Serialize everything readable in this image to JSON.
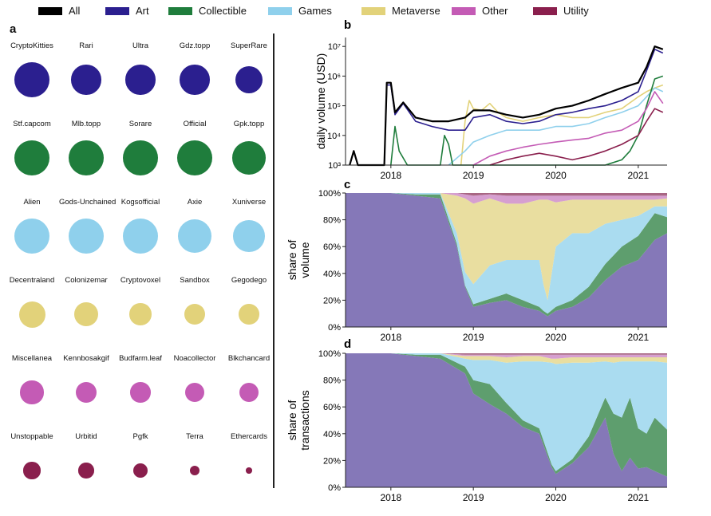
{
  "legend": [
    {
      "label": "All",
      "color": "#000000"
    },
    {
      "label": "Art",
      "color": "#2b1f8f"
    },
    {
      "label": "Collectible",
      "color": "#1f7d3c"
    },
    {
      "label": "Games",
      "color": "#8fd0ec"
    },
    {
      "label": "Metaverse",
      "color": "#e2d27a"
    },
    {
      "label": "Other",
      "color": "#c45bb5"
    },
    {
      "label": "Utility",
      "color": "#8a1f4d"
    }
  ],
  "panels": {
    "a": "a",
    "b": "b",
    "c": "c",
    "d": "d"
  },
  "panel_a": {
    "rows": [
      {
        "category": "Art",
        "color": "#2b1f8f",
        "items": [
          {
            "name": "CryptoKitties",
            "size": 1.0
          },
          {
            "name": "Rari",
            "size": 0.85
          },
          {
            "name": "Ultra",
            "size": 0.85
          },
          {
            "name": "Gdz.topp",
            "size": 0.85
          },
          {
            "name": "SuperRare",
            "size": 0.78
          }
        ]
      },
      {
        "category": "Collectible",
        "color": "#1f7d3c",
        "items": [
          {
            "name": "Stf.capcom",
            "size": 1.0
          },
          {
            "name": "Mlb.topp",
            "size": 1.0
          },
          {
            "name": "Sorare",
            "size": 1.0
          },
          {
            "name": "Official",
            "size": 1.0
          },
          {
            "name": "Gpk.topp",
            "size": 0.95
          }
        ]
      },
      {
        "category": "Games",
        "color": "#8fd0ec",
        "items": [
          {
            "name": "Alien",
            "size": 1.0
          },
          {
            "name": "Gods-Unchained",
            "size": 1.0
          },
          {
            "name": "Kogsofficial",
            "size": 1.0
          },
          {
            "name": "Axie",
            "size": 0.95
          },
          {
            "name": "Xuniverse",
            "size": 0.9
          }
        ]
      },
      {
        "category": "Metaverse",
        "color": "#e2d27a",
        "items": [
          {
            "name": "Decentraland",
            "size": 0.75
          },
          {
            "name": "Colonizemar",
            "size": 0.68
          },
          {
            "name": "Cryptovoxel",
            "size": 0.63
          },
          {
            "name": "Sandbox",
            "size": 0.6
          },
          {
            "name": "Gegodego",
            "size": 0.58
          }
        ]
      },
      {
        "category": "Other",
        "color": "#c45bb5",
        "items": [
          {
            "name": "Miscellanea",
            "size": 0.66
          },
          {
            "name": "Kennbosakgif",
            "size": 0.6
          },
          {
            "name": "Budfarm.leaf",
            "size": 0.58
          },
          {
            "name": "Noacollector",
            "size": 0.56
          },
          {
            "name": "Blkchancard",
            "size": 0.56
          }
        ]
      },
      {
        "category": "Utility",
        "color": "#8a1f4d",
        "items": [
          {
            "name": "Unstoppable",
            "size": 0.48
          },
          {
            "name": "Urbitid",
            "size": 0.44
          },
          {
            "name": "Pgfk",
            "size": 0.42
          },
          {
            "name": "Terra",
            "size": 0.28
          },
          {
            "name": "Ethercards",
            "size": 0.17
          }
        ]
      }
    ]
  },
  "chart_data": [
    {
      "panel": "b",
      "type": "line",
      "ylabel": "daily volume (USD)",
      "yscale": "log",
      "xlim": [
        2017.45,
        2021.35
      ],
      "ylim": [
        1000,
        20000000
      ],
      "xticks": [
        "2018",
        "2019",
        "2020",
        "2021"
      ],
      "yticks": [
        "10³",
        "10⁴",
        "10⁵",
        "10⁶",
        "10⁷"
      ],
      "series": [
        {
          "name": "Metaverse",
          "color": "#e2d27a",
          "x": [
            2018.85,
            2018.9,
            2018.95,
            2019.0,
            2019.1,
            2019.2,
            2019.3,
            2019.4,
            2019.6,
            2019.8,
            2020.0,
            2020.2,
            2020.4,
            2020.6,
            2020.8,
            2021.0,
            2021.1,
            2021.2,
            2021.3
          ],
          "y": [
            1000,
            30000,
            150000,
            80000,
            70000,
            120000,
            60000,
            40000,
            30000,
            40000,
            50000,
            40000,
            40000,
            60000,
            80000,
            200000,
            300000,
            400000,
            500000
          ]
        },
        {
          "name": "Games",
          "color": "#8fd0ec",
          "x": [
            2018.7,
            2018.9,
            2019.0,
            2019.2,
            2019.4,
            2019.6,
            2019.8,
            2020.0,
            2020.2,
            2020.4,
            2020.6,
            2020.8,
            2021.0,
            2021.1,
            2021.2,
            2021.3
          ],
          "y": [
            1000,
            3000,
            6000,
            10000,
            15000,
            15000,
            15000,
            20000,
            20000,
            25000,
            40000,
            60000,
            100000,
            200000,
            400000,
            300000
          ]
        },
        {
          "name": "Collectible",
          "color": "#1f7d3c",
          "x": [
            2018.0,
            2018.05,
            2018.1,
            2018.2,
            2018.25,
            2018.6,
            2018.65,
            2018.7,
            2018.75,
            2019.5,
            2020.0,
            2020.3,
            2020.6,
            2020.8,
            2020.9,
            2021.0,
            2021.1,
            2021.2,
            2021.3
          ],
          "y": [
            1000,
            20000,
            3000,
            1000,
            1000,
            1000,
            10000,
            5000,
            1000,
            1000,
            1000,
            1000,
            1000,
            1500,
            3000,
            10000,
            100000,
            800000,
            1000000
          ]
        },
        {
          "name": "Other",
          "color": "#c45bb5",
          "x": [
            2019.0,
            2019.2,
            2019.4,
            2019.6,
            2019.8,
            2020.0,
            2020.2,
            2020.4,
            2020.6,
            2020.8,
            2021.0,
            2021.1,
            2021.2,
            2021.3
          ],
          "y": [
            1000,
            2000,
            3000,
            4000,
            5000,
            6000,
            7000,
            8000,
            12000,
            15000,
            30000,
            80000,
            300000,
            120000
          ]
        },
        {
          "name": "Utility",
          "color": "#8a1f4d",
          "x": [
            2019.2,
            2019.4,
            2019.6,
            2019.8,
            2020.0,
            2020.2,
            2020.4,
            2020.6,
            2020.8,
            2021.0,
            2021.1,
            2021.2,
            2021.3
          ],
          "y": [
            1000,
            1500,
            2000,
            2500,
            2000,
            1500,
            2000,
            3000,
            5000,
            10000,
            30000,
            80000,
            60000
          ]
        },
        {
          "name": "Art",
          "color": "#2b1f8f",
          "x": [
            2017.5,
            2017.55,
            2017.6,
            2017.92,
            2017.95,
            2018.0,
            2018.05,
            2018.15,
            2018.3,
            2018.5,
            2018.7,
            2018.9,
            2019.0,
            2019.2,
            2019.4,
            2019.6,
            2019.8,
            2020.0,
            2020.2,
            2020.4,
            2020.6,
            2020.8,
            2021.0,
            2021.1,
            2021.2,
            2021.3
          ],
          "y": [
            1000,
            3000,
            1000,
            1000,
            500000,
            500000,
            50000,
            120000,
            30000,
            20000,
            15000,
            15000,
            40000,
            50000,
            30000,
            25000,
            30000,
            50000,
            60000,
            80000,
            100000,
            150000,
            300000,
            1500000,
            8000000,
            6000000
          ]
        },
        {
          "name": "All",
          "color": "#000000",
          "x": [
            2017.5,
            2017.55,
            2017.6,
            2017.92,
            2017.95,
            2018.0,
            2018.05,
            2018.15,
            2018.3,
            2018.5,
            2018.7,
            2018.9,
            2019.0,
            2019.2,
            2019.4,
            2019.6,
            2019.8,
            2020.0,
            2020.2,
            2020.4,
            2020.6,
            2020.8,
            2021.0,
            2021.1,
            2021.2,
            2021.3
          ],
          "y": [
            1000,
            3000,
            1000,
            1000,
            600000,
            600000,
            60000,
            130000,
            40000,
            30000,
            30000,
            40000,
            70000,
            70000,
            50000,
            40000,
            50000,
            80000,
            100000,
            150000,
            250000,
            400000,
            600000,
            2000000,
            10000000,
            8000000
          ]
        }
      ]
    },
    {
      "panel": "c",
      "type": "area",
      "stacked": true,
      "ylabel": "share of volume",
      "xlim": [
        2017.45,
        2021.35
      ],
      "ylim": [
        0,
        100
      ],
      "xticks": [
        "2018",
        "2019",
        "2020",
        "2021"
      ],
      "yticks": [
        "0%",
        "20%",
        "40%",
        "60%",
        "80%",
        "100%"
      ],
      "x": [
        2017.45,
        2018.0,
        2018.3,
        2018.6,
        2018.8,
        2018.9,
        2019.0,
        2019.2,
        2019.4,
        2019.6,
        2019.8,
        2019.85,
        2019.9,
        2020.0,
        2020.2,
        2020.4,
        2020.6,
        2020.8,
        2021.0,
        2021.2,
        2021.35
      ],
      "series": [
        {
          "name": "Art",
          "color": "#8578b8",
          "values": [
            100,
            100,
            98,
            96,
            60,
            30,
            15,
            18,
            20,
            15,
            12,
            10,
            8,
            12,
            15,
            22,
            35,
            45,
            50,
            65,
            70
          ]
        },
        {
          "name": "Collectible",
          "color": "#5e9e6e",
          "values": [
            0,
            0,
            1,
            3,
            2,
            1,
            2,
            3,
            5,
            5,
            3,
            2,
            2,
            3,
            5,
            8,
            12,
            15,
            18,
            20,
            12
          ]
        },
        {
          "name": "Games",
          "color": "#aadcf0",
          "values": [
            0,
            0,
            1,
            1,
            8,
            10,
            15,
            25,
            25,
            30,
            35,
            20,
            10,
            45,
            50,
            40,
            30,
            20,
            15,
            5,
            8
          ]
        },
        {
          "name": "Metaverse",
          "color": "#e9dea0",
          "values": [
            0,
            0,
            0,
            0,
            28,
            55,
            60,
            50,
            42,
            42,
            45,
            63,
            75,
            33,
            25,
            25,
            18,
            15,
            12,
            5,
            6
          ]
        },
        {
          "name": "Other",
          "color": "#d69fd0",
          "values": [
            0,
            0,
            0,
            0,
            2,
            3,
            6,
            3,
            6,
            6,
            3,
            3,
            3,
            5,
            3,
            3,
            3,
            3,
            3,
            3,
            2
          ]
        },
        {
          "name": "Utility",
          "color": "#a86683",
          "values": [
            0,
            0,
            0,
            0,
            0,
            1,
            2,
            1,
            2,
            2,
            2,
            2,
            2,
            2,
            2,
            2,
            2,
            2,
            2,
            2,
            2
          ]
        }
      ]
    },
    {
      "panel": "d",
      "type": "area",
      "stacked": true,
      "ylabel": "share of transactions",
      "xlim": [
        2017.45,
        2021.35
      ],
      "ylim": [
        0,
        100
      ],
      "xticks": [
        "2018",
        "2019",
        "2020",
        "2021"
      ],
      "yticks": [
        "0%",
        "20%",
        "40%",
        "60%",
        "80%",
        "100%"
      ],
      "x": [
        2017.45,
        2018.0,
        2018.3,
        2018.6,
        2018.9,
        2019.0,
        2019.2,
        2019.4,
        2019.6,
        2019.8,
        2019.95,
        2020.0,
        2020.2,
        2020.4,
        2020.6,
        2020.7,
        2020.8,
        2020.9,
        2021.0,
        2021.1,
        2021.2,
        2021.35
      ],
      "series": [
        {
          "name": "Art",
          "color": "#8578b8",
          "values": [
            100,
            100,
            98,
            96,
            85,
            70,
            62,
            55,
            45,
            40,
            15,
            10,
            18,
            30,
            52,
            25,
            12,
            22,
            14,
            15,
            12,
            8
          ]
        },
        {
          "name": "Collectible",
          "color": "#5e9e6e",
          "values": [
            0,
            0,
            1,
            3,
            5,
            10,
            15,
            8,
            5,
            4,
            2,
            2,
            3,
            8,
            15,
            30,
            40,
            45,
            30,
            25,
            40,
            35
          ]
        },
        {
          "name": "Games",
          "color": "#aadcf0",
          "values": [
            0,
            0,
            1,
            1,
            6,
            15,
            18,
            30,
            44,
            50,
            76,
            80,
            72,
            55,
            27,
            38,
            42,
            27,
            50,
            54,
            42,
            50
          ]
        },
        {
          "name": "Metaverse",
          "color": "#e9dea0",
          "values": [
            0,
            0,
            0,
            0,
            2,
            3,
            3,
            4,
            4,
            4,
            3,
            4,
            4,
            4,
            3,
            4,
            3,
            3,
            3,
            3,
            3,
            4
          ]
        },
        {
          "name": "Other",
          "color": "#d69fd0",
          "values": [
            0,
            0,
            0,
            0,
            1,
            1,
            1,
            2,
            1,
            1,
            3,
            3,
            2,
            2,
            2,
            2,
            2,
            2,
            2,
            2,
            2,
            2
          ]
        },
        {
          "name": "Utility",
          "color": "#a86683",
          "values": [
            0,
            0,
            0,
            0,
            1,
            1,
            1,
            1,
            1,
            1,
            1,
            1,
            1,
            1,
            1,
            1,
            1,
            1,
            1,
            1,
            1,
            1
          ]
        }
      ]
    }
  ]
}
